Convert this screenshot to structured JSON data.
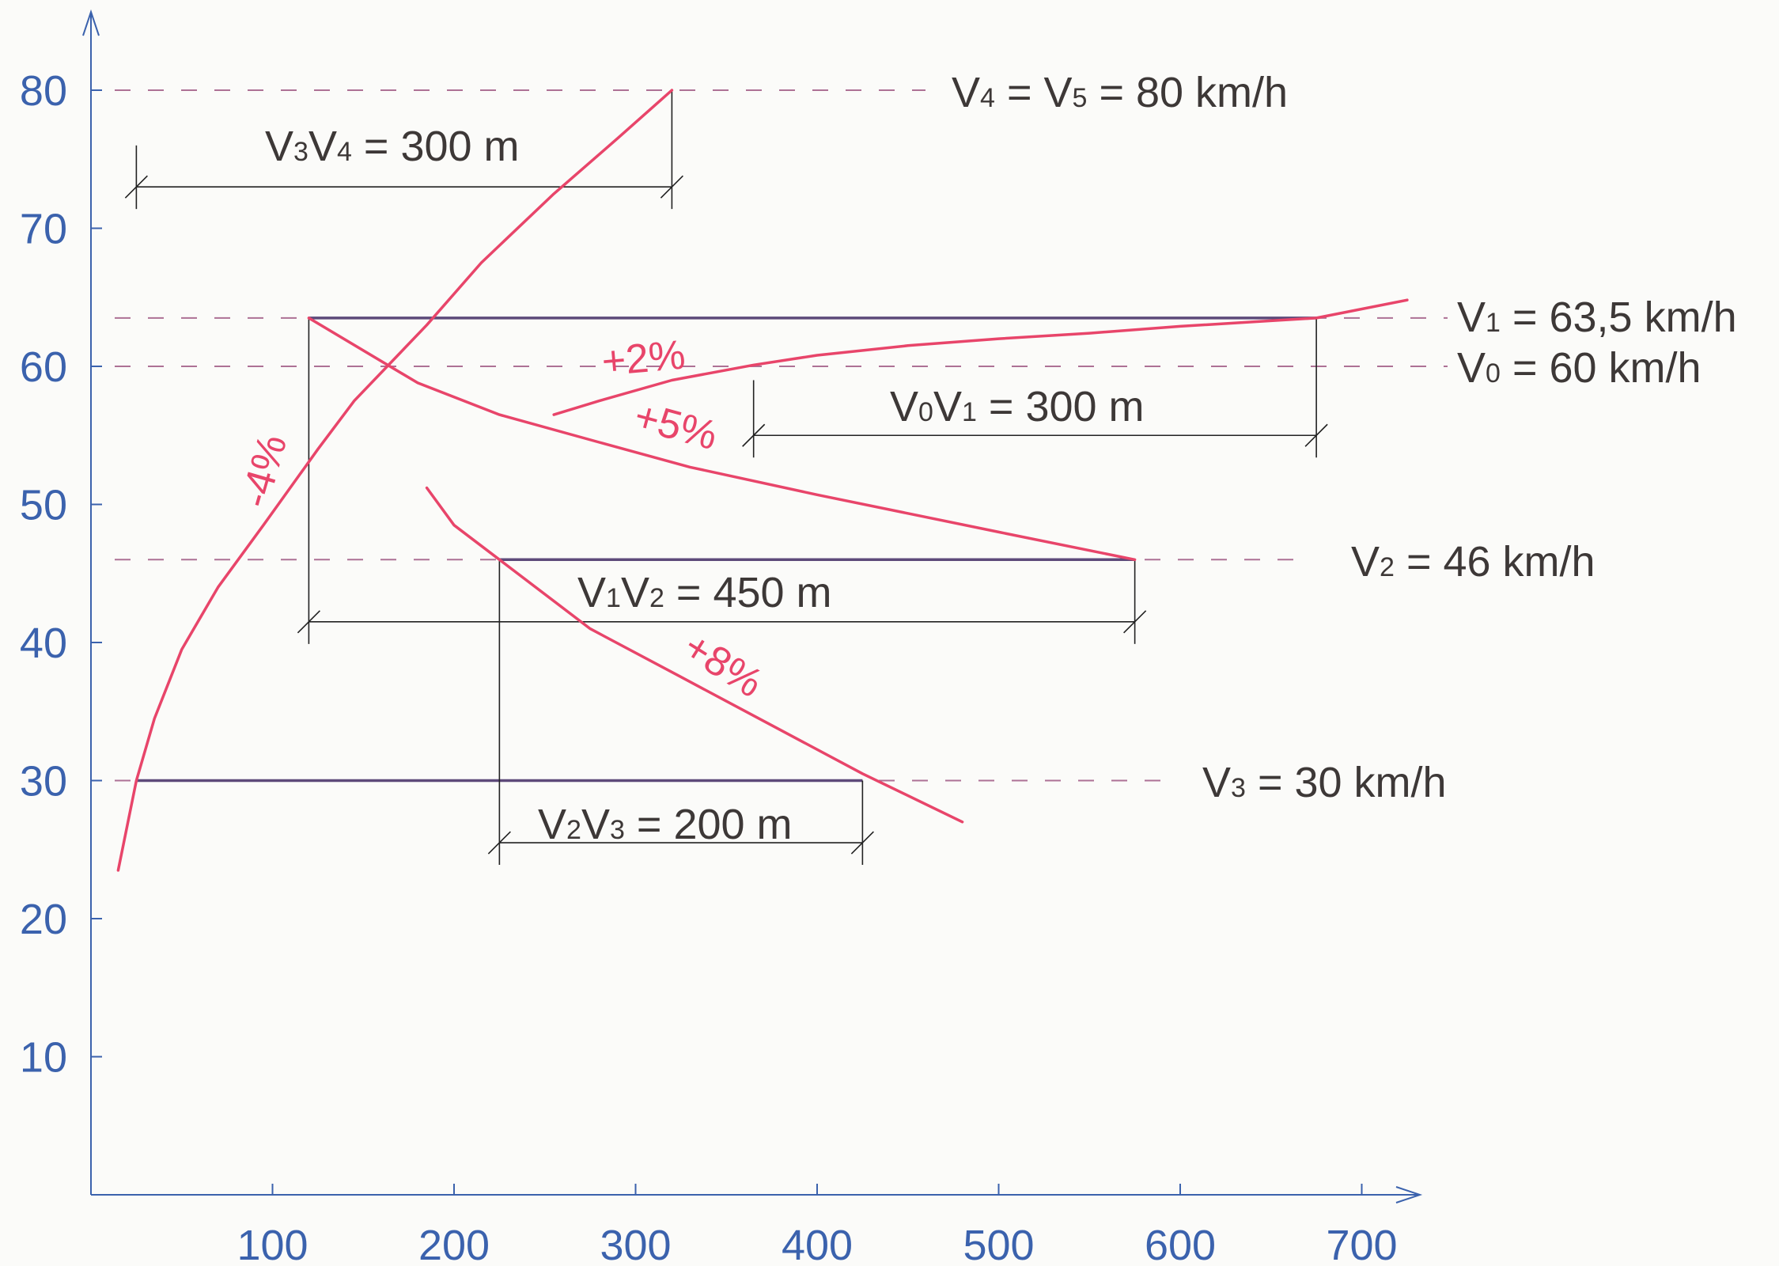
{
  "chart_data": {
    "type": "line",
    "title": "",
    "xlabel": "",
    "ylabel": "",
    "xlim": [
      0,
      700
    ],
    "ylim": [
      0,
      80
    ],
    "x_ticks": [
      "100",
      "200",
      "300",
      "400",
      "500",
      "600",
      "700"
    ],
    "y_ticks": [
      "10",
      "20",
      "30",
      "40",
      "50",
      "60",
      "70",
      "80"
    ],
    "grid": false,
    "series": [
      {
        "name": "-4%",
        "label_angle": -74,
        "x": [
          15,
          25,
          35,
          50,
          70,
          95,
          125,
          145,
          185,
          215,
          255,
          290,
          320
        ],
        "y": [
          23.5,
          30,
          34.5,
          39.5,
          44,
          48.5,
          54,
          57.5,
          63,
          67.5,
          72.5,
          76.5,
          80
        ]
      },
      {
        "name": "+2%",
        "label_angle": -5,
        "x": [
          255,
          280,
          320,
          365,
          400,
          450,
          500,
          550,
          600,
          650,
          675,
          725
        ],
        "y": [
          56.5,
          57.5,
          59,
          60.1,
          60.8,
          61.5,
          62,
          62.4,
          62.9,
          63.3,
          63.5,
          64.8
        ]
      },
      {
        "name": "+5%",
        "label_angle": 15,
        "x": [
          120,
          180,
          225,
          280,
          330,
          400,
          500,
          575
        ],
        "y": [
          63.5,
          58.8,
          56.5,
          54.5,
          52.7,
          50.7,
          48,
          46
        ]
      },
      {
        "name": "+8%",
        "label_angle": 32,
        "x": [
          185,
          200,
          225,
          275,
          325,
          375,
          425,
          480
        ],
        "y": [
          51.2,
          48.5,
          46,
          41,
          37.5,
          34,
          30.5,
          27
        ]
      }
    ],
    "speed_lines": [
      {
        "label": "V4 = V5 = 80 km/h",
        "value": 80,
        "x_start": 0,
        "x_end": 320,
        "solid": false
      },
      {
        "label": "V1 = 63,5 km/h",
        "value": 63.5,
        "x_start": 120,
        "x_end": 675,
        "solid": true
      },
      {
        "label": "V0 = 60 km/h",
        "value": 60,
        "x_start": 0,
        "x_end": 675,
        "solid": false
      },
      {
        "label": "V2 = 46 km/h",
        "value": 46,
        "x_start": 225,
        "x_end": 575,
        "solid": true
      },
      {
        "label": "V3 = 30 km/h",
        "value": 30,
        "x_start": 25,
        "x_end": 425,
        "solid": true
      }
    ],
    "distances": [
      {
        "label": "V3V4 = 300 m",
        "from": 25,
        "to": 320,
        "level": 73
      },
      {
        "label": "V0V1 = 300 m",
        "from": 365,
        "to": 675,
        "level": 55
      },
      {
        "label": "V1V2 = 450 m",
        "from": 120,
        "to": 575,
        "level": 41.5
      },
      {
        "label": "V2V3 = 200 m",
        "from": 225,
        "to": 425,
        "level": 25.5
      }
    ],
    "colors": {
      "axis": "#3b62ad",
      "curve": "#e8456a",
      "dashed": "#a05a84",
      "solid_line": "#5d4a7a",
      "dimension": "#222222",
      "text": "#3d3837"
    }
  },
  "annotations": {
    "v45": {
      "main": "V",
      "sub1": "4",
      "mid": " = V",
      "sub2": "5",
      "rest": " = 80 km/h"
    },
    "v1": {
      "main": "V",
      "sub1": "1",
      "rest": " = 63,5 km/h"
    },
    "v0": {
      "main": "V",
      "sub1": "0",
      "rest": " = 60 km/h"
    },
    "v2": {
      "main": "V",
      "sub1": "2",
      "rest": " = 46 km/h"
    },
    "v3": {
      "main": "V",
      "sub1": "3",
      "rest": " = 30 km/h"
    },
    "d34": {
      "main": "V",
      "sub1": "3",
      "mid": "V",
      "sub2": "4",
      "rest": " = 300 m"
    },
    "d01": {
      "main": "V",
      "sub1": "0",
      "mid": "V",
      "sub2": "1",
      "rest": " = 300 m"
    },
    "d12": {
      "main": "V",
      "sub1": "1",
      "mid": "V",
      "sub2": "2",
      "rest": " = 450 m"
    },
    "d23": {
      "main": "V",
      "sub1": "2",
      "mid": "V",
      "sub2": "3",
      "rest": " = 200 m"
    }
  }
}
